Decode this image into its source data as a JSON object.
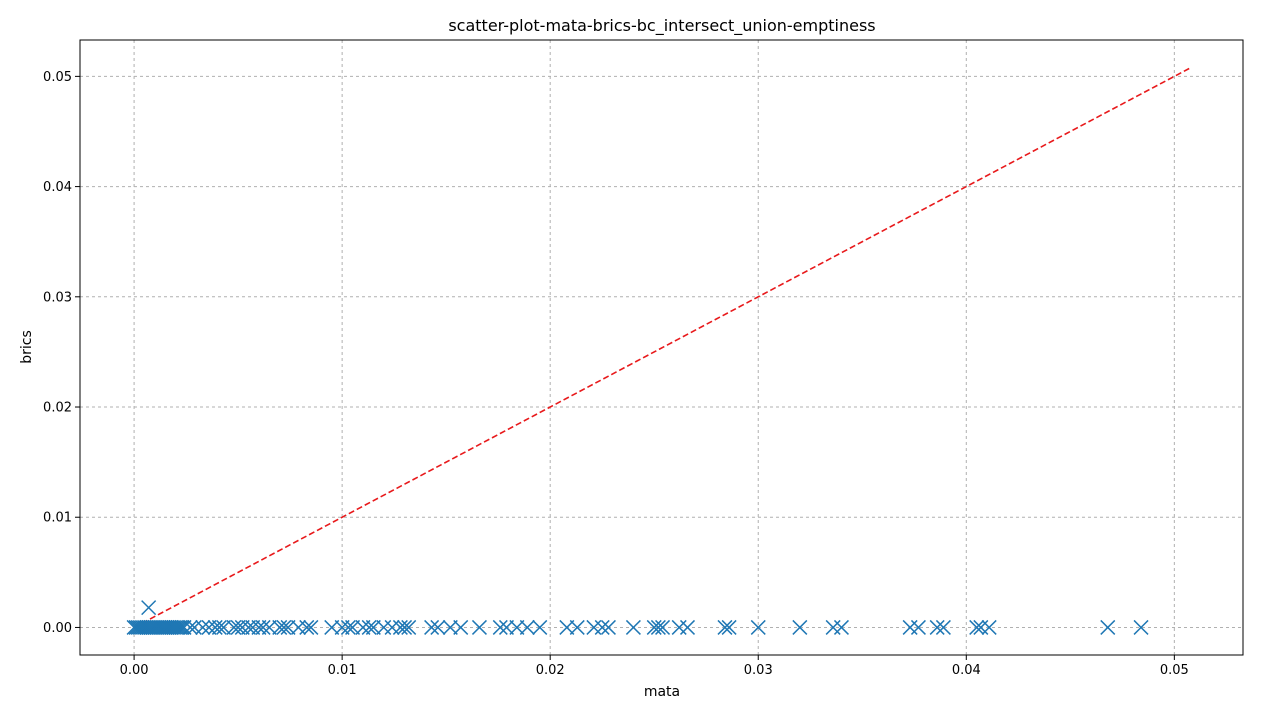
{
  "chart_data": {
    "type": "scatter",
    "title": "scatter-plot-mata-brics-bc_intersect_union-emptiness",
    "xlabel": "mata",
    "ylabel": "brics",
    "xlim": [
      -0.0026,
      0.0533
    ],
    "ylim": [
      -0.0025,
      0.0533
    ],
    "xticks": [
      0.0,
      0.01,
      0.02,
      0.03,
      0.04,
      0.05
    ],
    "xtick_labels": [
      "0.00",
      "0.01",
      "0.02",
      "0.03",
      "0.04",
      "0.05"
    ],
    "yticks": [
      0.0,
      0.01,
      0.02,
      0.03,
      0.04,
      0.05
    ],
    "ytick_labels": [
      "0.00",
      "0.01",
      "0.02",
      "0.03",
      "0.04",
      "0.05"
    ],
    "grid": true,
    "marker": "x",
    "colors": {
      "points": "#1f77b4",
      "reference": "#e8191b",
      "grid": "#b0b0b0"
    },
    "reference_line": {
      "x": [
        0.0,
        0.0508
      ],
      "y": [
        0.0,
        0.0508
      ],
      "style": "dashed"
    },
    "series": [
      {
        "x": [
          0.0,
          0.0001,
          0.0002,
          0.0003,
          0.0004,
          0.0005,
          0.0006,
          0.0007,
          0.0008,
          0.0009,
          0.001,
          0.0011,
          0.0012,
          0.0013,
          0.0014,
          0.0015,
          0.0016,
          0.0017,
          0.0018,
          0.0019,
          0.002,
          0.0021,
          0.0022,
          0.0023,
          0.0024,
          0.0027,
          0.0029,
          0.0033,
          0.0036,
          0.0039,
          0.0041,
          0.0043,
          0.0048,
          0.005,
          0.0052,
          0.0055,
          0.0057,
          0.006,
          0.0062,
          0.0065,
          0.007,
          0.0072,
          0.0074,
          0.0079,
          0.0083,
          0.0085,
          0.0095,
          0.01,
          0.0103,
          0.0105,
          0.011,
          0.0113,
          0.0115,
          0.012,
          0.0124,
          0.0128,
          0.013,
          0.0132,
          0.0143,
          0.0146,
          0.0152,
          0.0157,
          0.0166,
          0.0176,
          0.0179,
          0.0184,
          0.0189,
          0.0195,
          0.0208,
          0.0213,
          0.0221,
          0.0225,
          0.0228,
          0.024,
          0.025,
          0.0252,
          0.0254,
          0.0262,
          0.0266,
          0.0284,
          0.0286,
          0.03,
          0.032,
          0.0336,
          0.034,
          0.0373,
          0.0377,
          0.0386,
          0.0389,
          0.0405,
          0.0407,
          0.0411,
          0.0468,
          0.0484,
          0.0007
        ],
        "y": [
          0,
          0,
          0,
          0,
          0,
          0,
          0,
          0,
          0,
          0,
          0,
          0,
          0,
          0,
          0,
          0,
          0,
          0,
          0,
          0,
          0,
          0,
          0,
          0,
          0,
          0,
          0,
          0,
          0,
          0,
          0,
          0,
          0,
          0,
          0,
          0,
          0,
          0,
          0,
          0,
          0,
          0,
          0,
          0,
          0,
          0,
          0,
          0,
          0,
          0,
          0,
          0,
          0,
          0,
          0,
          0,
          0,
          0,
          0,
          0,
          0,
          0,
          0,
          0,
          0,
          0,
          0,
          0,
          0,
          0,
          0,
          0,
          0,
          0,
          0,
          0,
          0,
          0,
          0,
          0,
          0,
          0,
          0,
          0,
          0,
          0,
          0,
          0,
          0,
          0,
          0,
          0,
          0,
          0,
          0.0018
        ]
      }
    ]
  }
}
